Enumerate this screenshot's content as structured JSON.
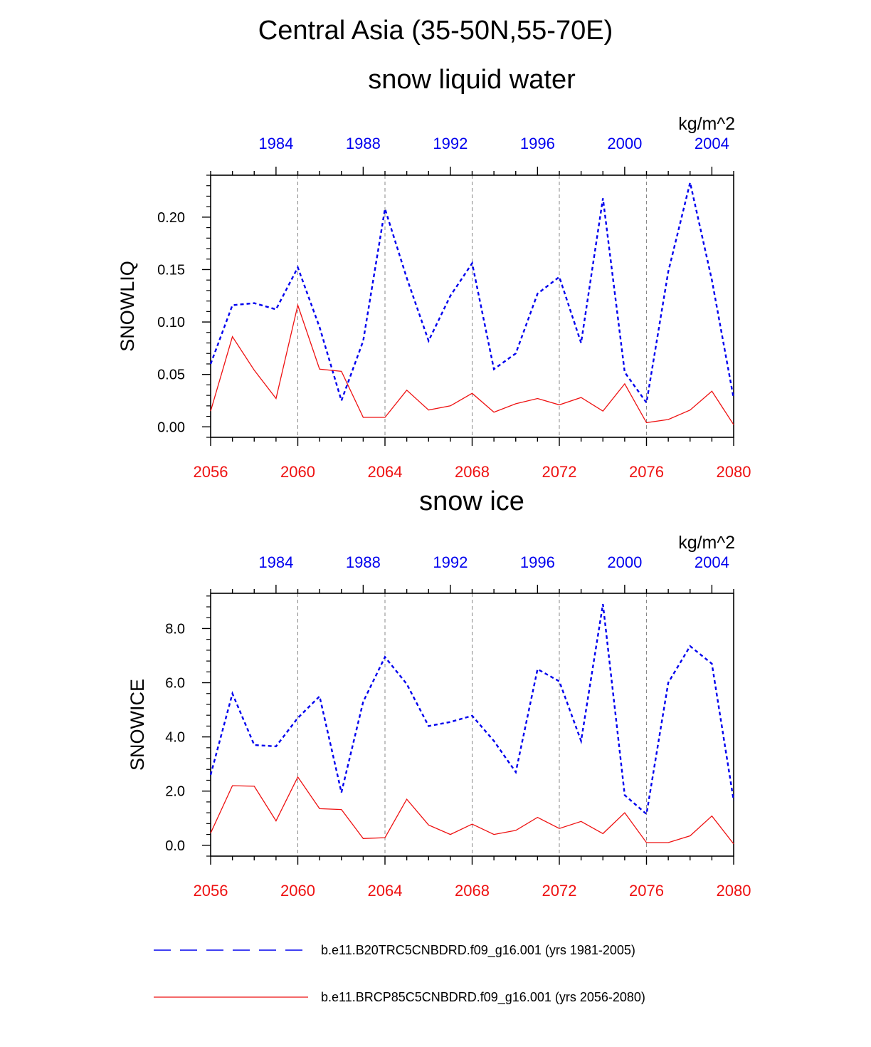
{
  "figure": {
    "title": "Central Asia (35-50N,55-70E)"
  },
  "colors": {
    "historical": "#0000ee",
    "future": "#ee1111",
    "grid": "#888888",
    "axis": "#000000"
  },
  "chart_data": [
    {
      "type": "line",
      "title": "snow liquid water",
      "units": "kg/m^2",
      "ylabel": "SNOWLIQ",
      "ylim": [
        -0.01,
        0.24
      ],
      "yticks": [
        0.0,
        0.05,
        0.1,
        0.15,
        0.2
      ],
      "ytick_labels": [
        "0.00",
        "0.05",
        "0.10",
        "0.15",
        "0.20"
      ],
      "x_bottom_ticks": [
        "2056",
        "2060",
        "2064",
        "2068",
        "2072",
        "2076",
        "2080"
      ],
      "x_top_ticks": [
        "1984",
        "1988",
        "1992",
        "1996",
        "2000",
        "2004"
      ],
      "grid": "vertical dashed at bottom-axis major ticks",
      "series": [
        {
          "key": "historical",
          "axis": "top",
          "style": "dashed",
          "x": [
            1981,
            1982,
            1983,
            1984,
            1985,
            1986,
            1987,
            1988,
            1989,
            1990,
            1991,
            1992,
            1993,
            1994,
            1995,
            1996,
            1997,
            1998,
            1999,
            2000,
            2001,
            2002,
            2003,
            2004,
            2005
          ],
          "values": [
            0.06,
            0.116,
            0.118,
            0.112,
            0.152,
            0.095,
            0.025,
            0.082,
            0.208,
            0.142,
            0.082,
            0.125,
            0.156,
            0.055,
            0.07,
            0.127,
            0.143,
            0.08,
            0.218,
            0.052,
            0.023,
            0.148,
            0.233,
            0.14,
            0.027
          ]
        },
        {
          "key": "future",
          "axis": "bottom",
          "style": "solid",
          "x": [
            2056,
            2057,
            2058,
            2059,
            2060,
            2061,
            2062,
            2063,
            2064,
            2065,
            2066,
            2067,
            2068,
            2069,
            2070,
            2071,
            2072,
            2073,
            2074,
            2075,
            2076,
            2077,
            2078,
            2079,
            2080
          ],
          "values": [
            0.015,
            0.086,
            0.054,
            0.027,
            0.116,
            0.055,
            0.053,
            0.009,
            0.009,
            0.035,
            0.016,
            0.02,
            0.032,
            0.014,
            0.022,
            0.027,
            0.021,
            0.028,
            0.015,
            0.041,
            0.004,
            0.007,
            0.016,
            0.034,
            0.002
          ]
        }
      ]
    },
    {
      "type": "line",
      "title": "snow ice",
      "units": "kg/m^2",
      "ylabel": "SNOWICE",
      "ylim": [
        -0.4,
        9.3
      ],
      "yticks": [
        0.0,
        2.0,
        4.0,
        6.0,
        8.0
      ],
      "ytick_labels": [
        "0.0",
        "2.0",
        "4.0",
        "6.0",
        "8.0"
      ],
      "x_bottom_ticks": [
        "2056",
        "2060",
        "2064",
        "2068",
        "2072",
        "2076",
        "2080"
      ],
      "x_top_ticks": [
        "1984",
        "1988",
        "1992",
        "1996",
        "2000",
        "2004"
      ],
      "grid": "vertical dashed at bottom-axis major ticks",
      "series": [
        {
          "key": "historical",
          "axis": "top",
          "style": "dashed",
          "x": [
            1981,
            1982,
            1983,
            1984,
            1985,
            1986,
            1987,
            1988,
            1989,
            1990,
            1991,
            1992,
            1993,
            1994,
            1995,
            1996,
            1997,
            1998,
            1999,
            2000,
            2001,
            2002,
            2003,
            2004,
            2005
          ],
          "values": [
            2.6,
            5.6,
            3.7,
            3.65,
            4.7,
            5.5,
            1.95,
            5.3,
            6.95,
            5.95,
            4.4,
            4.55,
            4.78,
            3.85,
            2.7,
            6.5,
            6.05,
            3.85,
            8.9,
            1.85,
            1.15,
            6.0,
            7.35,
            6.7,
            1.65
          ]
        },
        {
          "key": "future",
          "axis": "bottom",
          "style": "solid",
          "x": [
            2056,
            2057,
            2058,
            2059,
            2060,
            2061,
            2062,
            2063,
            2064,
            2065,
            2066,
            2067,
            2068,
            2069,
            2070,
            2071,
            2072,
            2073,
            2074,
            2075,
            2076,
            2077,
            2078,
            2079,
            2080
          ],
          "values": [
            0.45,
            2.2,
            2.18,
            0.9,
            2.52,
            1.35,
            1.32,
            0.25,
            0.28,
            1.7,
            0.75,
            0.4,
            0.78,
            0.4,
            0.55,
            1.03,
            0.62,
            0.88,
            0.43,
            1.2,
            0.1,
            0.1,
            0.35,
            1.08,
            0.05
          ]
        }
      ]
    }
  ],
  "legend": {
    "placement": "bottom",
    "items": [
      {
        "key": "historical",
        "label": "b.e11.B20TRC5CNBDRD.f09_g16.001 (yrs 1981-2005)"
      },
      {
        "key": "future",
        "label": "b.e11.BRCP85C5CNBDRD.f09_g16.001 (yrs 2056-2080)"
      }
    ]
  }
}
